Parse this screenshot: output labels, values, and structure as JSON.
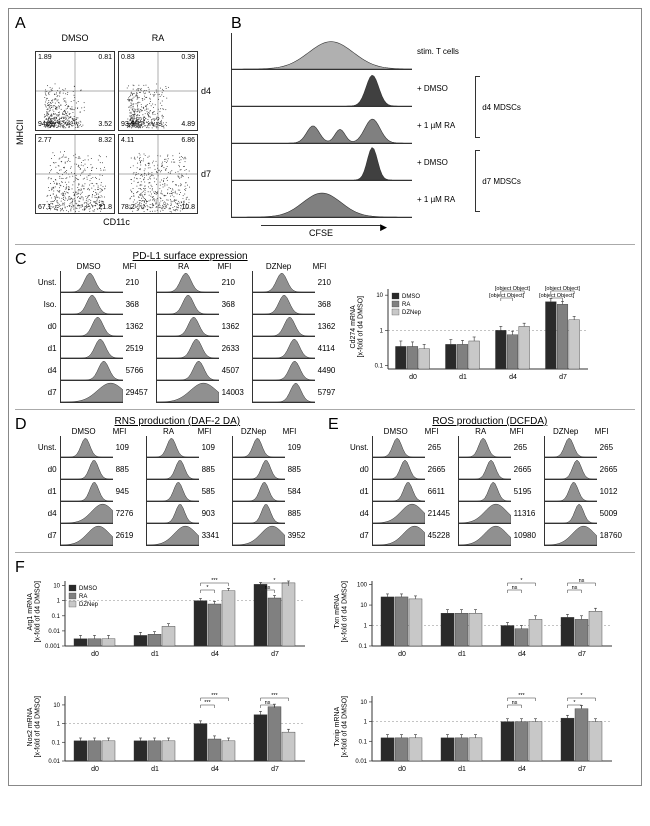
{
  "panelA": {
    "y_axis": "MHCII",
    "x_axis": "CD11c",
    "cols": [
      "DMSO",
      "RA"
    ],
    "rows": [
      "d4",
      "d7"
    ],
    "plots": [
      {
        "tl": "1.89",
        "tr": "0.81",
        "bl": "94.2",
        "br": "3.52",
        "pattern": "d4dmso"
      },
      {
        "tl": "0.83",
        "tr": "0.39",
        "bl": "93.9",
        "br": "4.89",
        "pattern": "d4ra"
      },
      {
        "tl": "2.77",
        "tr": "8.32",
        "bl": "67.1",
        "br": "21.8",
        "pattern": "d7dmso"
      },
      {
        "tl": "4.11",
        "tr": "6.86",
        "bl": "78.2",
        "br": "10.8",
        "pattern": "d7ra"
      }
    ]
  },
  "panelB": {
    "x_axis": "CFSE",
    "traces": [
      {
        "label": "stim. T cells",
        "color": "#b0b0b0",
        "peaks": [
          {
            "x": 0.55,
            "w": 0.35,
            "h": 0.8
          }
        ]
      },
      {
        "label": "+ DMSO",
        "color": "#404040",
        "group": "d4 MDSCs",
        "peaks": [
          {
            "x": 0.78,
            "w": 0.1,
            "h": 0.9
          }
        ]
      },
      {
        "label": "+ 1 µM RA",
        "color": "#808080",
        "group": "d4 MDSCs",
        "peaks": [
          {
            "x": 0.45,
            "w": 0.1,
            "h": 0.5
          },
          {
            "x": 0.6,
            "w": 0.08,
            "h": 0.4
          },
          {
            "x": 0.78,
            "w": 0.12,
            "h": 0.7
          }
        ]
      },
      {
        "label": "+ DMSO",
        "color": "#404040",
        "group": "d7 MDSCs",
        "peaks": [
          {
            "x": 0.78,
            "w": 0.08,
            "h": 0.95
          }
        ]
      },
      {
        "label": "+ 1 µM RA",
        "color": "#808080",
        "group": "d7 MDSCs",
        "peaks": [
          {
            "x": 0.5,
            "w": 0.3,
            "h": 0.7
          }
        ]
      }
    ]
  },
  "panelC": {
    "title": "PD-L1 surface expression",
    "cols": [
      "DMSO",
      "RA",
      "DZNep"
    ],
    "row_labels": [
      "Unst.",
      "Iso.",
      "d0",
      "d1",
      "d4",
      "d7"
    ],
    "mfi": {
      "DMSO": [
        210,
        368,
        1362,
        2519,
        5766,
        29457
      ],
      "RA": [
        210,
        368,
        1362,
        2633,
        4507,
        14003
      ],
      "DZNep": [
        210,
        368,
        1362,
        4114,
        4490,
        5797
      ]
    },
    "bar": {
      "ylabel": "Cd274 mRNA\n[x-fold of d4 DMSO]",
      "x": [
        "d0",
        "d1",
        "d4",
        "d7"
      ],
      "series": [
        {
          "name": "DMSO",
          "color": "#2a2a2a",
          "vals": [
            0.35,
            0.4,
            1.0,
            6.5
          ],
          "err": [
            0.15,
            0.15,
            0.3,
            1.5
          ]
        },
        {
          "name": "RA",
          "color": "#808080",
          "vals": [
            0.35,
            0.4,
            0.75,
            5.5
          ],
          "err": [
            0.12,
            0.12,
            0.2,
            1.2
          ]
        },
        {
          "name": "DZNep",
          "color": "#c8c8c8",
          "vals": [
            0.3,
            0.5,
            1.3,
            2.0
          ],
          "err": [
            0.1,
            0.15,
            0.3,
            0.5
          ]
        }
      ],
      "sig": [
        {
          "between": [
            "d4-0",
            "d4-1"
          ],
          "label": "ns"
        },
        {
          "between": [
            "d4-0",
            "d4-2"
          ],
          "label": "ns"
        },
        {
          "between": [
            "d7-0",
            "d7-1"
          ],
          "label": "ns"
        },
        {
          "between": [
            "d7-0",
            "d7-2"
          ],
          "label": "*"
        }
      ],
      "yticks": [
        0.1,
        1,
        10
      ],
      "ylim": [
        0.08,
        15
      ],
      "log": true
    }
  },
  "panelD": {
    "title": "RNS production (DAF-2 DA)",
    "cols": [
      "DMSO",
      "RA",
      "DZNep"
    ],
    "row_labels": [
      "Unst.",
      "d0",
      "d1",
      "d4",
      "d7"
    ],
    "mfi": {
      "DMSO": [
        109,
        885,
        945,
        7276,
        2619
      ],
      "RA": [
        109,
        885,
        585,
        903,
        3341
      ],
      "DZNep": [
        109,
        885,
        584,
        885,
        3952
      ]
    }
  },
  "panelE": {
    "title": "ROS production (DCFDA)",
    "cols": [
      "DMSO",
      "RA",
      "DZNep"
    ],
    "row_labels": [
      "Unst.",
      "d0",
      "d1",
      "d4",
      "d7"
    ],
    "mfi": {
      "DMSO": [
        265,
        2665,
        6611,
        21445,
        45228
      ],
      "RA": [
        265,
        2665,
        5195,
        11316,
        10980
      ],
      "DZNep": [
        265,
        2665,
        1012,
        5009,
        18760
      ]
    }
  },
  "panelF": {
    "charts": [
      {
        "ylabel": "Arg1 mRNA\n[x-fold of d4 DMSO]",
        "ylim": [
          0.001,
          20
        ],
        "yticks": [
          0.001,
          0.01,
          0.1,
          1,
          10
        ],
        "vals": {
          "DMSO": [
            0.003,
            0.005,
            1.0,
            12
          ],
          "RA": [
            0.003,
            0.006,
            0.6,
            1.5
          ],
          "DZNep": [
            0.003,
            0.02,
            4.5,
            15
          ]
        },
        "err": {
          "DMSO": [
            0.002,
            0.003,
            0.4,
            4
          ],
          "RA": [
            0.002,
            0.003,
            0.3,
            0.7
          ],
          "DZNep": [
            0.002,
            0.01,
            2,
            5
          ]
        },
        "sig": [
          "*",
          "***",
          "ns",
          "*"
        ]
      },
      {
        "ylabel": "Txn mRNA\n[x-fold of d4 DMSO]",
        "ylim": [
          0.1,
          150
        ],
        "yticks": [
          0.1,
          1,
          10,
          100
        ],
        "vals": {
          "DMSO": [
            25,
            4,
            1.0,
            2.5
          ],
          "RA": [
            25,
            4,
            0.7,
            2
          ],
          "DZNep": [
            20,
            4,
            2,
            5
          ]
        },
        "err": {
          "DMSO": [
            10,
            2,
            0.4,
            1
          ],
          "RA": [
            10,
            2,
            0.3,
            1
          ],
          "DZNep": [
            8,
            2,
            1,
            2
          ]
        },
        "sig": [
          "ns",
          "*",
          "ns",
          "ns"
        ]
      },
      {
        "ylabel": "Nos2 mRNA\n[x-fold of d4 DMSO]",
        "ylim": [
          0.01,
          30
        ],
        "yticks": [
          0.01,
          0.1,
          1,
          10
        ],
        "vals": {
          "DMSO": [
            0.12,
            0.12,
            1.0,
            3
          ],
          "RA": [
            0.12,
            0.12,
            0.15,
            8
          ],
          "DZNep": [
            0.12,
            0.12,
            0.12,
            0.35
          ]
        },
        "err": {
          "DMSO": [
            0.05,
            0.05,
            0.4,
            1.5
          ],
          "RA": [
            0.05,
            0.05,
            0.07,
            3
          ],
          "DZNep": [
            0.05,
            0.05,
            0.05,
            0.15
          ]
        },
        "sig": [
          "***",
          "***",
          "ns",
          "***"
        ]
      },
      {
        "ylabel": "Txnip mRNA\n[x-fold of d4 DMSO]",
        "ylim": [
          0.01,
          20
        ],
        "yticks": [
          0.01,
          0.1,
          1,
          10
        ],
        "vals": {
          "DMSO": [
            0.15,
            0.15,
            1.0,
            1.5
          ],
          "RA": [
            0.15,
            0.15,
            1.0,
            4.5
          ],
          "DZNep": [
            0.15,
            0.15,
            1.0,
            1.0
          ]
        },
        "err": {
          "DMSO": [
            0.07,
            0.07,
            0.4,
            0.6
          ],
          "RA": [
            0.07,
            0.07,
            0.4,
            2
          ],
          "DZNep": [
            0.07,
            0.07,
            0.4,
            0.4
          ]
        },
        "sig": [
          "ns",
          "***",
          "*",
          "*"
        ]
      }
    ],
    "x": [
      "d0",
      "d1",
      "d4",
      "d7"
    ],
    "colors": {
      "DMSO": "#2a2a2a",
      "RA": "#808080",
      "DZNep": "#c8c8c8"
    }
  }
}
